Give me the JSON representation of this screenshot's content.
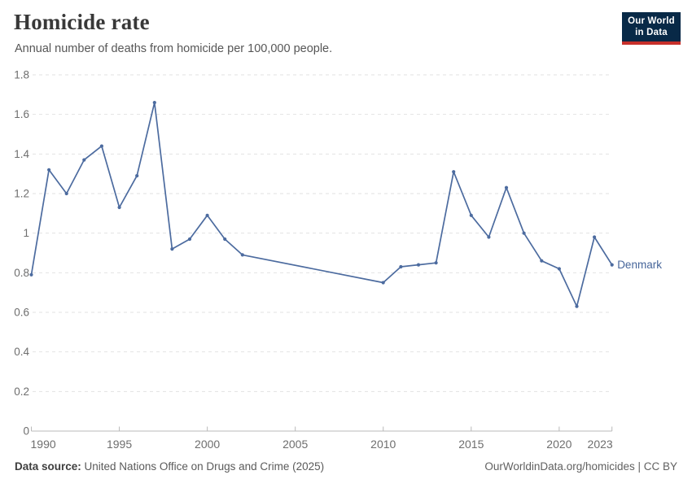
{
  "header": {
    "title": "Homicide rate",
    "subtitle": "Annual number of deaths from homicide per 100,000 people.",
    "logo": {
      "line1": "Our World",
      "line2": "in Data"
    }
  },
  "footer": {
    "source_label": "Data source:",
    "source_text": " United Nations Office on Drugs and Crime (2025)",
    "right_text": "OurWorldinData.org/homicides | CC BY"
  },
  "colors": {
    "line": "#4C6B9F",
    "series_label": "#46659A",
    "grid": "#E2E2E2",
    "axis": "#B9B9B9",
    "tick_label": "#6E6E6E",
    "logo_bg": "#082947",
    "logo_red": "#C7302B"
  },
  "chart_data": {
    "type": "line",
    "title": "Homicide rate",
    "subtitle": "Annual number of deaths from homicide per 100,000 people.",
    "xlabel": "",
    "ylabel": "",
    "xlim": [
      1990,
      2023
    ],
    "ylim": [
      0,
      1.8
    ],
    "grid": true,
    "x_ticks": [
      1990,
      1995,
      2000,
      2005,
      2010,
      2015,
      2020,
      2023
    ],
    "y_ticks": [
      0,
      0.2,
      0.4,
      0.6,
      0.8,
      1,
      1.2,
      1.4,
      1.6,
      1.8
    ],
    "series": [
      {
        "name": "Denmark",
        "points": [
          [
            1990,
            0.79
          ],
          [
            1991,
            1.32
          ],
          [
            1992,
            1.2
          ],
          [
            1993,
            1.37
          ],
          [
            1994,
            1.44
          ],
          [
            1995,
            1.13
          ],
          [
            1996,
            1.29
          ],
          [
            1997,
            1.66
          ],
          [
            1998,
            0.92
          ],
          [
            1999,
            0.97
          ],
          [
            2000,
            1.09
          ],
          [
            2001,
            0.97
          ],
          [
            2002,
            0.89
          ],
          [
            2010,
            0.75
          ],
          [
            2011,
            0.83
          ],
          [
            2012,
            0.84
          ],
          [
            2013,
            0.85
          ],
          [
            2014,
            1.31
          ],
          [
            2015,
            1.09
          ],
          [
            2016,
            0.98
          ],
          [
            2017,
            1.23
          ],
          [
            2018,
            1.0
          ],
          [
            2019,
            0.86
          ],
          [
            2020,
            0.82
          ],
          [
            2021,
            0.63
          ],
          [
            2022,
            0.98
          ],
          [
            2023,
            0.84
          ]
        ]
      }
    ],
    "note": "Line is continuous between 2002 and 2010 (no intermediate observations)."
  }
}
